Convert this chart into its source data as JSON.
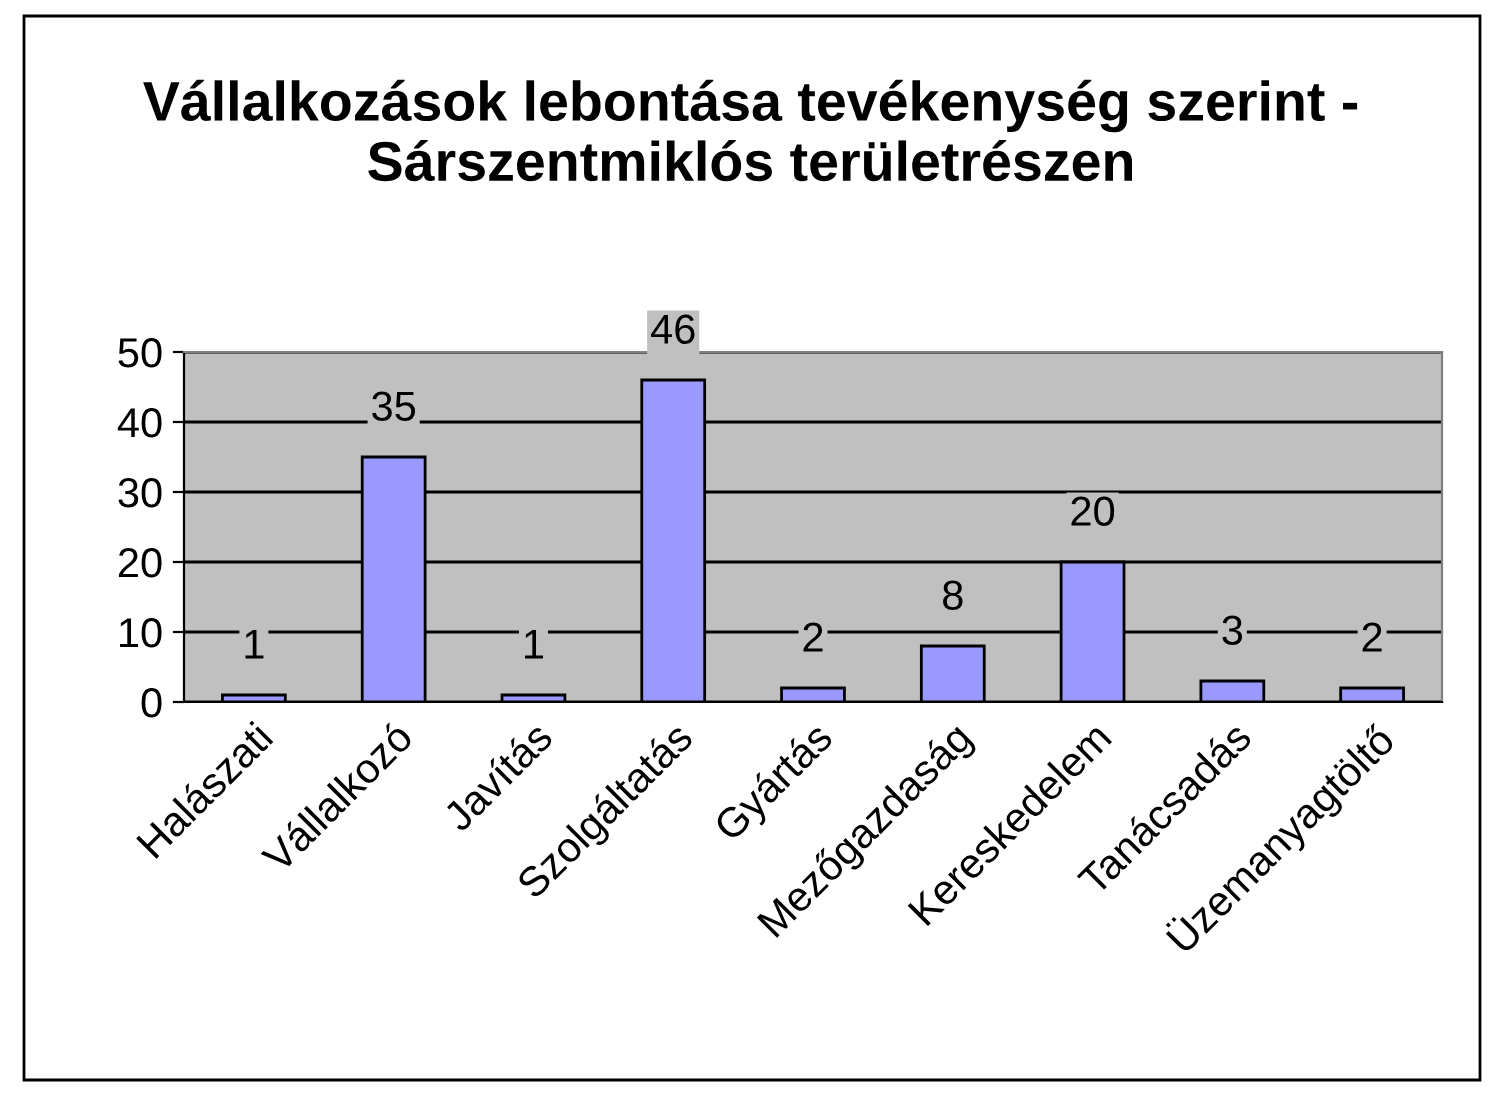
{
  "chart_data": {
    "type": "bar",
    "title": "Vállalkozások lebontása tevékenység szerint - Sárszentmiklós területrészen",
    "categories": [
      "Halászati",
      "Vállalkozó",
      "Javítás",
      "Szolgáltatás",
      "Gyártás",
      "Mezőgazdaság",
      "Kereskedelem",
      "Tanácsadás",
      "Üzemanyagtöltő"
    ],
    "values": [
      1,
      35,
      1,
      46,
      2,
      8,
      20,
      3,
      2
    ],
    "color": "#9999ff",
    "ylim": [
      0,
      50
    ],
    "yticks": [
      0,
      10,
      20,
      30,
      40,
      50
    ],
    "grid": "y",
    "data_labels": true,
    "legend": false
  }
}
